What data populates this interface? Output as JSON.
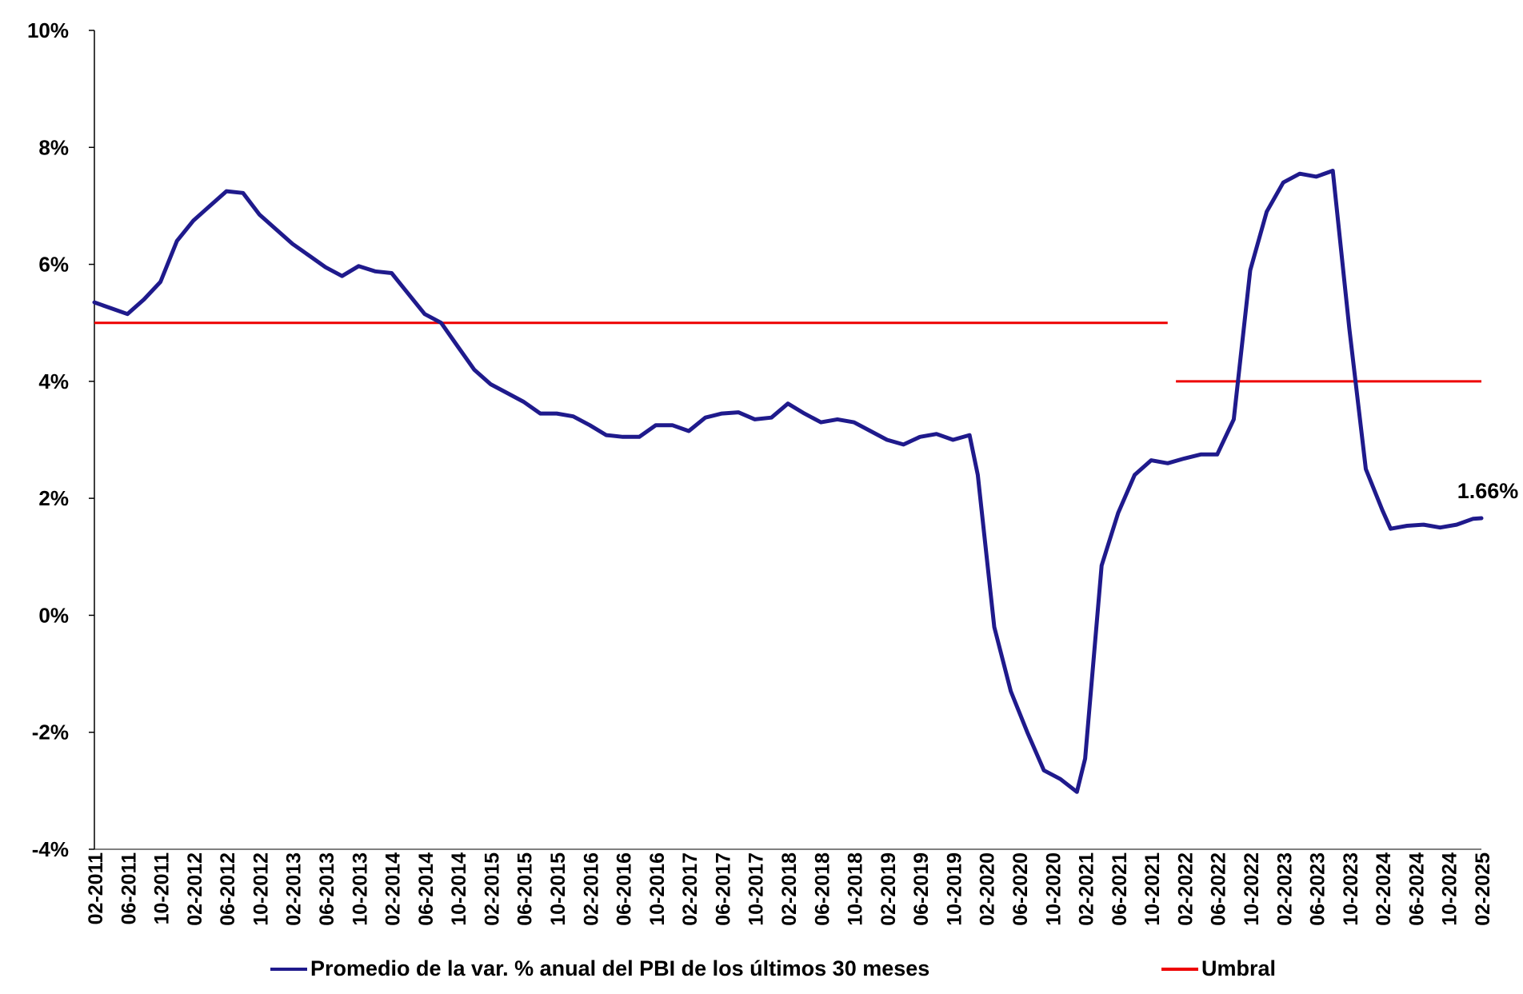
{
  "chart_data": {
    "type": "line",
    "title": "",
    "xlabel": "",
    "ylabel": "",
    "ylim": [
      -4,
      10
    ],
    "y_ticks": [
      "10%",
      "8%",
      "6%",
      "4%",
      "2%",
      "0%",
      "-2%",
      "-4%"
    ],
    "x_start": "2011-02",
    "x_end": "2025-02",
    "x_tick_labels": [
      "02-2011",
      "06-2011",
      "10-2011",
      "02-2012",
      "06-2012",
      "10-2012",
      "02-2013",
      "06-2013",
      "10-2013",
      "02-2014",
      "06-2014",
      "10-2014",
      "02-2015",
      "06-2015",
      "10-2015",
      "02-2016",
      "06-2016",
      "10-2016",
      "02-2017",
      "06-2017",
      "10-2017",
      "02-2018",
      "06-2018",
      "10-2018",
      "02-2019",
      "06-2019",
      "10-2019",
      "02-2020",
      "06-2020",
      "10-2020",
      "02-2021",
      "06-2021",
      "10-2021",
      "02-2022",
      "06-2022",
      "10-2022",
      "02-2023",
      "06-2023",
      "10-2023",
      "02-2024",
      "06-2024",
      "10-2024",
      "02-2025"
    ],
    "grid": false,
    "legend_position": "bottom",
    "series": [
      {
        "name": "Promedio de la var. % anual del PBI de los últimos 30 meses",
        "color": "#1f1a8c",
        "points": [
          [
            "2011-02",
            5.35
          ],
          [
            "2011-04",
            5.25
          ],
          [
            "2011-06",
            5.15
          ],
          [
            "2011-08",
            5.4
          ],
          [
            "2011-10",
            5.7
          ],
          [
            "2011-12",
            6.4
          ],
          [
            "2012-02",
            6.75
          ],
          [
            "2012-04",
            7.0
          ],
          [
            "2012-06",
            7.25
          ],
          [
            "2012-08",
            7.22
          ],
          [
            "2012-10",
            6.85
          ],
          [
            "2012-12",
            6.6
          ],
          [
            "2013-02",
            6.35
          ],
          [
            "2013-04",
            6.15
          ],
          [
            "2013-06",
            5.95
          ],
          [
            "2013-08",
            5.8
          ],
          [
            "2013-10",
            5.97
          ],
          [
            "2013-12",
            5.88
          ],
          [
            "2014-02",
            5.85
          ],
          [
            "2014-04",
            5.5
          ],
          [
            "2014-06",
            5.15
          ],
          [
            "2014-08",
            5.0
          ],
          [
            "2014-10",
            4.6
          ],
          [
            "2014-12",
            4.2
          ],
          [
            "2015-02",
            3.95
          ],
          [
            "2015-04",
            3.8
          ],
          [
            "2015-06",
            3.65
          ],
          [
            "2015-08",
            3.45
          ],
          [
            "2015-10",
            3.45
          ],
          [
            "2015-12",
            3.4
          ],
          [
            "2016-02",
            3.25
          ],
          [
            "2016-04",
            3.08
          ],
          [
            "2016-06",
            3.05
          ],
          [
            "2016-08",
            3.05
          ],
          [
            "2016-10",
            3.25
          ],
          [
            "2016-12",
            3.25
          ],
          [
            "2017-02",
            3.15
          ],
          [
            "2017-04",
            3.38
          ],
          [
            "2017-06",
            3.45
          ],
          [
            "2017-08",
            3.47
          ],
          [
            "2017-10",
            3.35
          ],
          [
            "2017-12",
            3.38
          ],
          [
            "2018-02",
            3.62
          ],
          [
            "2018-04",
            3.45
          ],
          [
            "2018-06",
            3.3
          ],
          [
            "2018-08",
            3.35
          ],
          [
            "2018-10",
            3.3
          ],
          [
            "2018-12",
            3.15
          ],
          [
            "2019-02",
            3.0
          ],
          [
            "2019-04",
            2.92
          ],
          [
            "2019-06",
            3.05
          ],
          [
            "2019-08",
            3.1
          ],
          [
            "2019-10",
            3.0
          ],
          [
            "2019-12",
            3.08
          ],
          [
            "2020-01",
            2.4
          ],
          [
            "2020-03",
            -0.2
          ],
          [
            "2020-05",
            -1.3
          ],
          [
            "2020-07",
            -2.0
          ],
          [
            "2020-09",
            -2.65
          ],
          [
            "2020-11",
            -2.8
          ],
          [
            "2021-01",
            -3.02
          ],
          [
            "2021-02",
            -2.45
          ],
          [
            "2021-04",
            0.85
          ],
          [
            "2021-06",
            1.75
          ],
          [
            "2021-08",
            2.4
          ],
          [
            "2021-10",
            2.65
          ],
          [
            "2021-12",
            2.6
          ],
          [
            "2022-02",
            2.68
          ],
          [
            "2022-04",
            2.75
          ],
          [
            "2022-06",
            2.75
          ],
          [
            "2022-08",
            3.35
          ],
          [
            "2022-10",
            5.9
          ],
          [
            "2022-12",
            6.9
          ],
          [
            "2023-02",
            7.4
          ],
          [
            "2023-04",
            7.55
          ],
          [
            "2023-06",
            7.5
          ],
          [
            "2023-08",
            7.6
          ],
          [
            "2023-10",
            4.9
          ],
          [
            "2023-12",
            2.5
          ],
          [
            "2024-02",
            1.8
          ],
          [
            "2024-03",
            1.48
          ],
          [
            "2024-05",
            1.53
          ],
          [
            "2024-07",
            1.55
          ],
          [
            "2024-09",
            1.5
          ],
          [
            "2024-11",
            1.55
          ],
          [
            "2025-01",
            1.65
          ],
          [
            "2025-02",
            1.66
          ]
        ]
      },
      {
        "name": "Umbral",
        "color": "#ee0000",
        "segments": [
          {
            "x_start": "2011-02",
            "x_end": "2021-12",
            "value": 5
          },
          {
            "x_start": "2022-01",
            "x_end": "2025-02",
            "value": 4
          }
        ]
      }
    ],
    "annotations": [
      {
        "text": "1.66%",
        "x": "2025-02",
        "y": 1.66
      }
    ]
  }
}
